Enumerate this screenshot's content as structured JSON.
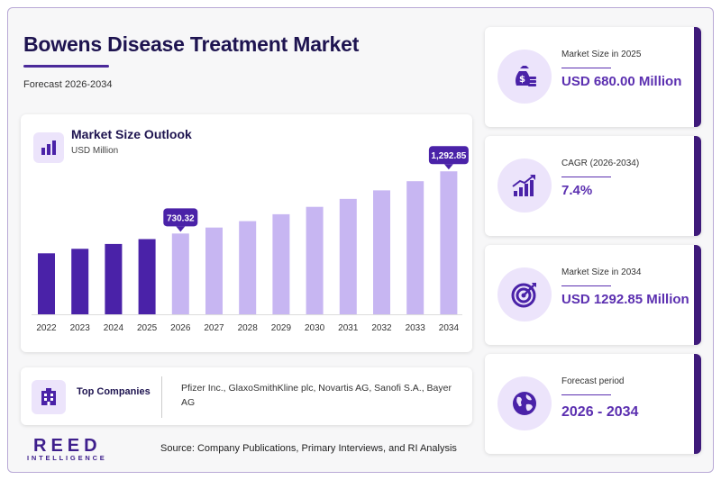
{
  "header": {
    "title": "Bowens Disease Treatment Market",
    "subtitle": "Forecast 2026-2034"
  },
  "chart_card": {
    "title": "Market Size Outlook",
    "unit": "USD Million",
    "icon": "bar-chart-icon"
  },
  "chart_data": {
    "type": "bar",
    "title": "Market Size Outlook",
    "ylabel": "USD Million",
    "categories": [
      "2022",
      "2023",
      "2024",
      "2025",
      "2026",
      "2027",
      "2028",
      "2029",
      "2030",
      "2031",
      "2032",
      "2033",
      "2034"
    ],
    "values": [
      551.3,
      592.1,
      635.9,
      680.0,
      730.32,
      784.4,
      842.4,
      904.7,
      971.6,
      1043.5,
      1120.7,
      1203.6,
      1292.85
    ],
    "data_labels": [
      {
        "category": "2026",
        "text": "730.32"
      },
      {
        "category": "2034",
        "text": "1,292.85"
      }
    ],
    "historical_color": "#4a22a8",
    "forecast_color": "#c7b6f2",
    "grid": false
  },
  "companies": {
    "label": "Top Companies",
    "icon": "building-icon",
    "text": "Pfizer Inc., GlaxoSmithKline plc, Novartis AG, Sanofi S.A., Bayer AG"
  },
  "stats": [
    {
      "label": "Market Size in 2025",
      "value": "USD 680.00 Million",
      "icon": "money-bag-icon"
    },
    {
      "label": "CAGR (2026-2034)",
      "value": "7.4%",
      "icon": "growth-chart-icon"
    },
    {
      "label": "Market Size in 2034",
      "value": "USD 1292.85 Million",
      "icon": "target-icon"
    },
    {
      "label": "Forecast period",
      "value": "2026 - 2034",
      "icon": "globe-icon"
    }
  ],
  "footer": {
    "logo_main": "REED",
    "logo_sub": "INTELLIGENCE",
    "source": "Source: Company Publications, Primary Interviews, and RI Analysis"
  },
  "colors": {
    "accent": "#5b2fb0",
    "dark": "#1e1450",
    "card_border": "#3e1a7a"
  }
}
